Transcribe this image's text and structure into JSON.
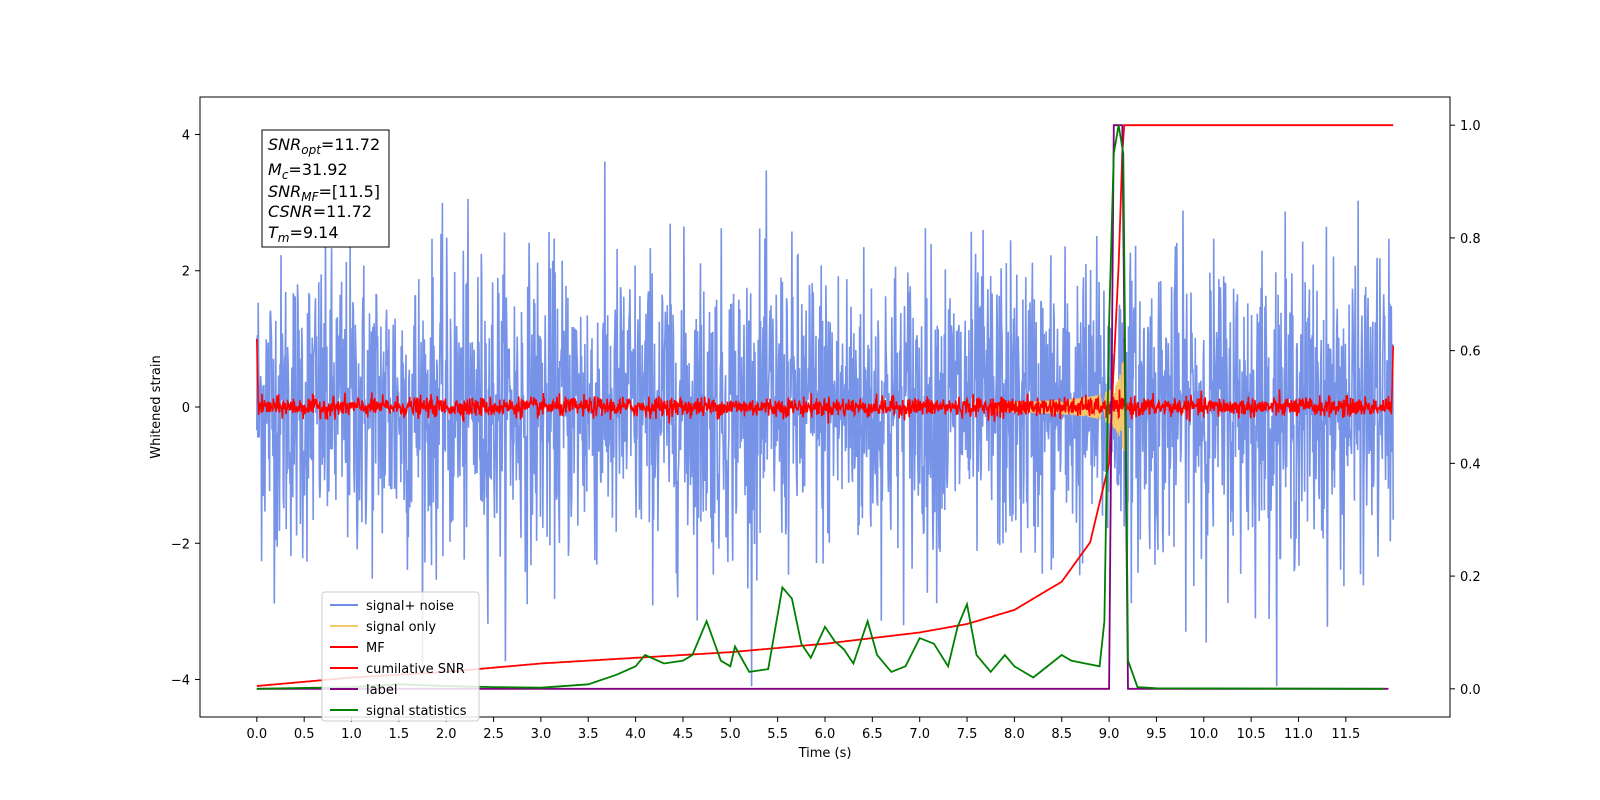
{
  "chart_data": {
    "type": "line",
    "xlabel": "Time (s)",
    "ylabel": "Whitened strain",
    "xlim": [
      -0.6,
      12.6
    ],
    "ylim": [
      -4.55,
      4.55
    ],
    "y2lim": [
      -0.05,
      1.05
    ],
    "x_ticks": [
      "0.0",
      "0.5",
      "1.0",
      "1.5",
      "2.0",
      "2.5",
      "3.0",
      "3.5",
      "4.0",
      "4.5",
      "5.0",
      "5.5",
      "6.0",
      "6.5",
      "7.0",
      "7.5",
      "8.0",
      "8.5",
      "9.0",
      "9.5",
      "10.0",
      "10.5",
      "11.0",
      "11.5"
    ],
    "y_ticks": [
      "4",
      "2",
      "0",
      "−2",
      "−4"
    ],
    "y2_ticks": [
      "1.0",
      "0.8",
      "0.6",
      "0.4",
      "0.2",
      "0.0"
    ],
    "grid": false,
    "legend_position": "bottom-left",
    "info_box": {
      "snr_opt": "=11.72",
      "mc": "=31.92",
      "snr_mf": "=[11.5]",
      "csnr": "=11.72",
      "tm": "=9.14"
    },
    "series": [
      {
        "name": "signal+ noise",
        "color": "#6f8de6",
        "axis": "left",
        "description_range": [
          -4.1,
          3.85
        ],
        "t_range": [
          0.0,
          12.0
        ]
      },
      {
        "name": "signal only",
        "color": "#f5c86a",
        "axis": "left",
        "peak_time": 9.14,
        "peak_amplitude": 0.7
      },
      {
        "name": "MF",
        "color": "#ff0000",
        "axis": "left",
        "t_range": [
          0.0,
          12.0
        ],
        "typical_amplitude": 0.12
      },
      {
        "name": "cumilative SNR",
        "color": "#ff0000",
        "axis": "right",
        "x": [
          0.0,
          1.0,
          2.0,
          3.0,
          4.0,
          5.0,
          6.0,
          7.0,
          7.5,
          8.0,
          8.5,
          8.8,
          9.0,
          9.1,
          9.15,
          12.0
        ],
        "y": [
          0.005,
          0.02,
          0.03,
          0.045,
          0.055,
          0.065,
          0.08,
          0.1,
          0.115,
          0.14,
          0.19,
          0.26,
          0.4,
          0.75,
          1.0,
          1.0
        ]
      },
      {
        "name": "label",
        "color": "#800080",
        "axis": "right",
        "x": [
          0.0,
          9.0,
          9.05,
          9.14,
          9.2,
          11.95
        ],
        "y": [
          0.0,
          0.0,
          1.0,
          1.0,
          0.0,
          0.0
        ]
      },
      {
        "name": "signal statistics",
        "color": "#008000",
        "axis": "right",
        "x": [
          0.0,
          1.0,
          1.5,
          2.0,
          2.5,
          3.0,
          3.5,
          3.8,
          4.0,
          4.1,
          4.3,
          4.5,
          4.6,
          4.75,
          4.9,
          5.0,
          5.05,
          5.2,
          5.4,
          5.55,
          5.65,
          5.75,
          5.85,
          6.0,
          6.1,
          6.2,
          6.3,
          6.45,
          6.55,
          6.7,
          6.85,
          7.0,
          7.15,
          7.3,
          7.4,
          7.5,
          7.6,
          7.75,
          7.9,
          8.0,
          8.2,
          8.5,
          8.6,
          8.75,
          8.9,
          8.95,
          9.0,
          9.05,
          9.1,
          9.15,
          9.2,
          9.3,
          9.5,
          11.9
        ],
        "y": [
          0.0,
          0.003,
          0.008,
          0.005,
          0.003,
          0.002,
          0.008,
          0.025,
          0.04,
          0.06,
          0.045,
          0.05,
          0.06,
          0.12,
          0.05,
          0.04,
          0.075,
          0.03,
          0.035,
          0.18,
          0.16,
          0.08,
          0.055,
          0.11,
          0.085,
          0.07,
          0.045,
          0.12,
          0.06,
          0.03,
          0.04,
          0.09,
          0.08,
          0.04,
          0.11,
          0.15,
          0.06,
          0.03,
          0.06,
          0.04,
          0.02,
          0.06,
          0.05,
          0.045,
          0.04,
          0.12,
          0.65,
          0.95,
          1.0,
          0.95,
          0.05,
          0.003,
          0.001,
          0.0
        ]
      }
    ]
  }
}
